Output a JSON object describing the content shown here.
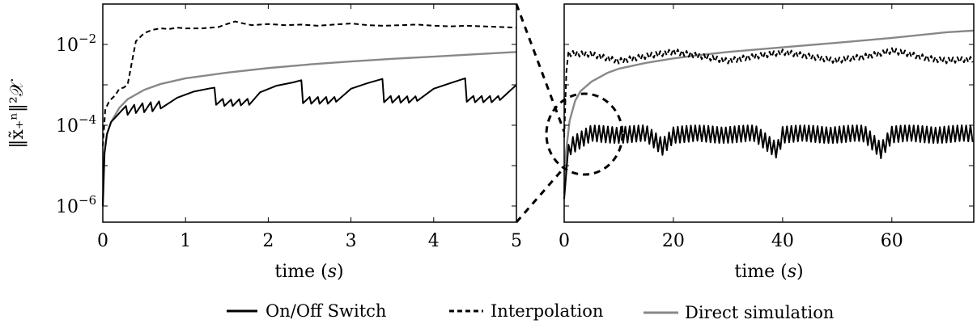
{
  "ylabel": "‖x̃₊ⁿ‖²𝒳",
  "legend": [
    {
      "key": "onoff",
      "label": "On/Off Switch",
      "color": "#000000",
      "dash": "solid"
    },
    {
      "key": "interp",
      "label": "Interpolation",
      "color": "#000000",
      "dash": "dashed"
    },
    {
      "key": "direct",
      "label": "Direct simulation",
      "color": "#888888",
      "dash": "solid"
    }
  ],
  "chart_data": [
    {
      "type": "line",
      "title": "",
      "xlabel": "time (s)",
      "xlabel_text": "time (",
      "xlabel_var": "s",
      "xlabel_close": ")",
      "xlim": [
        0,
        5
      ],
      "ylim_log10": [
        -6.4,
        -1.0
      ],
      "yscale": "log",
      "xticks": [
        0,
        1,
        2,
        3,
        4,
        5
      ],
      "xtick_labels": [
        "0",
        "1",
        "2",
        "3",
        "4",
        "5"
      ],
      "yticks_exp": [
        -6,
        -4,
        -2
      ],
      "ytick_base": "10",
      "ytick_exps": [
        "−6",
        "−4",
        "−2"
      ],
      "series": [
        {
          "key": "direct",
          "x": [
            0,
            0.02,
            0.05,
            0.1,
            0.2,
            0.3,
            0.5,
            0.7,
            1.0,
            1.5,
            2.0,
            2.5,
            3.0,
            3.5,
            4.0,
            4.5,
            5.0
          ],
          "y": [
            1e-06,
            2e-05,
            6e-05,
            0.00012,
            0.00027,
            0.00044,
            0.00075,
            0.00105,
            0.00145,
            0.002,
            0.0026,
            0.0032,
            0.0038,
            0.0044,
            0.005,
            0.0057,
            0.0065
          ]
        },
        {
          "key": "interp",
          "x": [
            0,
            0.03,
            0.08,
            0.15,
            0.2,
            0.25,
            0.3,
            0.35,
            0.4,
            0.5,
            0.6,
            0.7,
            0.8,
            0.9,
            1.0,
            1.2,
            1.4,
            1.5,
            1.6,
            1.7,
            1.8,
            2.0,
            2.2,
            2.4,
            2.6,
            2.8,
            3.0,
            3.2,
            3.4,
            3.6,
            3.8,
            4.0,
            4.2,
            4.4,
            4.6,
            4.8,
            5.0
          ],
          "y": [
            3e-05,
            0.00025,
            0.0004,
            0.00055,
            0.0008,
            0.00085,
            0.001,
            0.0035,
            0.012,
            0.019,
            0.023,
            0.025,
            0.024,
            0.026,
            0.025,
            0.025,
            0.027,
            0.032,
            0.037,
            0.033,
            0.03,
            0.032,
            0.03,
            0.031,
            0.029,
            0.031,
            0.033,
            0.03,
            0.029,
            0.03,
            0.031,
            0.029,
            0.028,
            0.029,
            0.028,
            0.027,
            0.026
          ]
        },
        {
          "key": "onoff",
          "x": [
            0,
            0.02,
            0.05,
            0.1,
            0.2,
            0.28,
            0.3,
            0.38,
            0.4,
            0.48,
            0.5,
            0.58,
            0.6,
            0.68,
            0.7,
            0.9,
            1.1,
            1.3,
            1.35,
            1.37,
            1.45,
            1.47,
            1.55,
            1.57,
            1.65,
            1.67,
            1.75,
            1.77,
            1.9,
            2.1,
            2.3,
            2.4,
            2.42,
            2.5,
            2.52,
            2.6,
            2.62,
            2.7,
            2.72,
            2.8,
            2.82,
            3.0,
            3.2,
            3.38,
            3.4,
            3.48,
            3.5,
            3.58,
            3.6,
            3.68,
            3.7,
            3.78,
            3.8,
            4.0,
            4.2,
            4.38,
            4.4,
            4.48,
            4.5,
            4.58,
            4.6,
            4.68,
            4.7,
            4.78,
            4.8,
            5.0
          ],
          "y": [
            1e-06,
            2e-05,
            6e-05,
            0.00012,
            0.0002,
            0.0003,
            0.00018,
            0.00032,
            0.0002,
            0.00035,
            0.00021,
            0.00037,
            0.00022,
            0.00039,
            0.00026,
            0.00048,
            0.00068,
            0.00082,
            0.00085,
            0.00032,
            0.00045,
            0.0003,
            0.00043,
            0.0003,
            0.00044,
            0.00031,
            0.00045,
            0.00032,
            0.00065,
            0.00095,
            0.00115,
            0.0013,
            0.00035,
            0.0005,
            0.00034,
            0.0005,
            0.00034,
            0.0005,
            0.00034,
            0.0005,
            0.00038,
            0.0008,
            0.0011,
            0.0014,
            0.00037,
            0.00053,
            0.00036,
            0.00053,
            0.00036,
            0.00052,
            0.00036,
            0.00052,
            0.0004,
            0.0008,
            0.0011,
            0.00145,
            0.00038,
            0.00053,
            0.00037,
            0.00053,
            0.00037,
            0.00053,
            0.00037,
            0.00053,
            0.00042,
            0.001
          ]
        }
      ]
    },
    {
      "type": "line",
      "title": "",
      "xlabel": "time (s)",
      "xlabel_text": "time (",
      "xlabel_var": "s",
      "xlabel_close": ")",
      "xlim": [
        0,
        75
      ],
      "ylim_log10": [
        -6.4,
        -1.0
      ],
      "yscale": "log",
      "xticks": [
        0,
        20,
        40,
        60
      ],
      "xtick_labels": [
        "0",
        "20",
        "40",
        "60"
      ],
      "series": [
        {
          "key": "direct",
          "x": [
            0,
            0.3,
            1,
            2,
            3,
            5,
            8,
            10,
            15,
            20,
            25,
            30,
            40,
            50,
            60,
            70,
            75
          ],
          "y": [
            2e-06,
            2e-05,
            0.00013,
            0.0004,
            0.0007,
            0.0012,
            0.002,
            0.0025,
            0.0035,
            0.0045,
            0.0055,
            0.0065,
            0.0085,
            0.011,
            0.0145,
            0.02,
            0.022
          ]
        },
        {
          "key": "interp",
          "x": [
            0,
            0.3,
            0.8,
            1.5,
            5,
            10,
            15,
            20,
            25,
            30,
            35,
            40,
            45,
            50,
            55,
            60,
            65,
            70,
            75
          ],
          "y": [
            5e-05,
            0.002,
            0.006,
            0.006,
            0.0055,
            0.004,
            0.005,
            0.0068,
            0.005,
            0.004,
            0.005,
            0.0065,
            0.005,
            0.004,
            0.005,
            0.007,
            0.005,
            0.004,
            0.0042
          ],
          "osc_amp_ratio": 1.35,
          "osc_period": 0.8
        },
        {
          "key": "onoff",
          "x": [
            0,
            0.3,
            1,
            5,
            10,
            15,
            18,
            20,
            25,
            30,
            35,
            39,
            40,
            45,
            50,
            55,
            58,
            60,
            65,
            70,
            75
          ],
          "y": [
            1.5e-06,
            1e-05,
            3e-05,
            6e-05,
            6e-05,
            6e-05,
            3e-05,
            6e-05,
            6e-05,
            6e-05,
            6e-05,
            2.5e-05,
            6e-05,
            6e-05,
            6e-05,
            6e-05,
            2.5e-05,
            6e-05,
            6e-05,
            6e-05,
            6e-05
          ],
          "osc_amp_ratio": 2.4,
          "osc_period": 0.8
        }
      ]
    }
  ]
}
